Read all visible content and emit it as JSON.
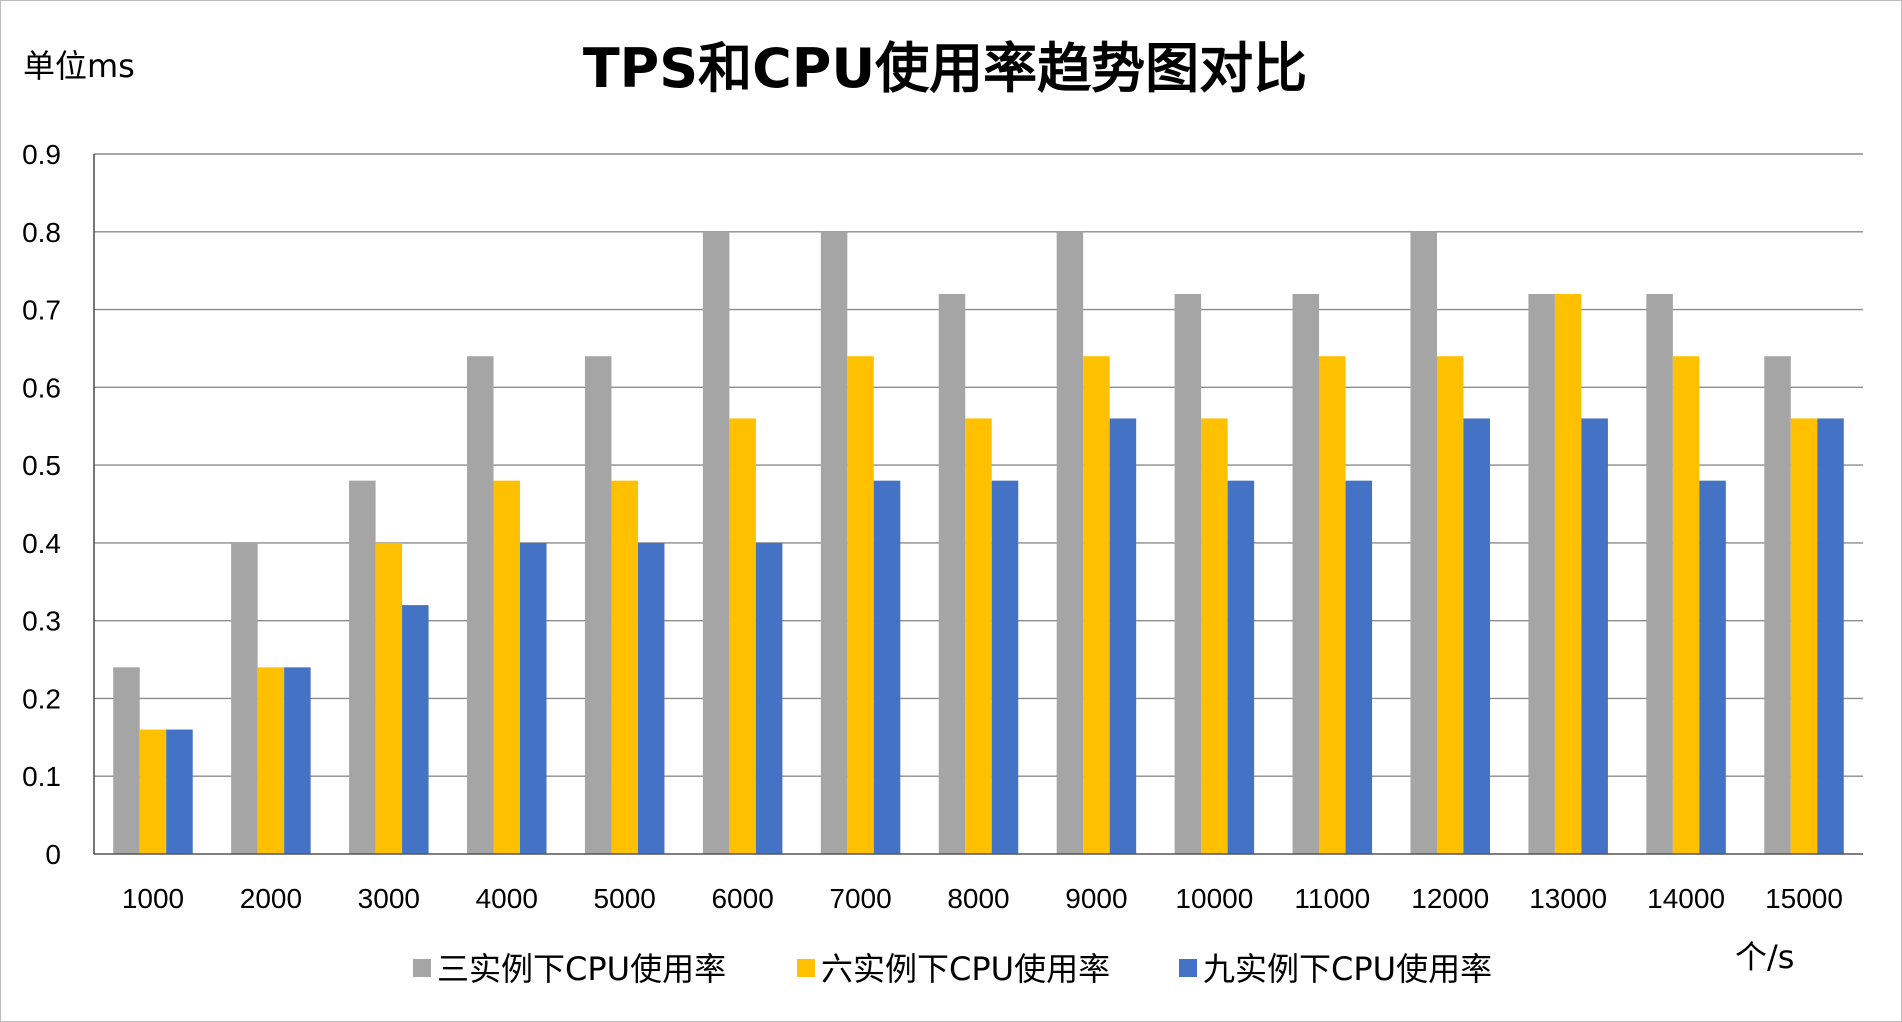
{
  "chart_data": {
    "type": "bar",
    "title": "TPS和CPU使用率趋势图对比",
    "y_unit_label": "单位ms",
    "x_unit_label": "个/s",
    "categories": [
      "1000",
      "2000",
      "3000",
      "4000",
      "5000",
      "6000",
      "7000",
      "8000",
      "9000",
      "10000",
      "11000",
      "12000",
      "13000",
      "14000",
      "15000"
    ],
    "y_ticks": [
      "0",
      "0.1",
      "0.2",
      "0.3",
      "0.4",
      "0.5",
      "0.6",
      "0.7",
      "0.8",
      "0.9"
    ],
    "ylim": [
      0,
      0.9
    ],
    "grid": true,
    "legend_position": "bottom",
    "series": [
      {
        "name": "三实例下CPU使用率",
        "color": "#a5a5a5",
        "values": [
          0.24,
          0.4,
          0.48,
          0.64,
          0.64,
          0.8,
          0.8,
          0.72,
          0.8,
          0.72,
          0.72,
          0.8,
          0.72,
          0.72,
          0.64
        ]
      },
      {
        "name": "六实例下CPU使用率",
        "color": "#ffc000",
        "values": [
          0.16,
          0.24,
          0.4,
          0.48,
          0.48,
          0.56,
          0.64,
          0.56,
          0.64,
          0.56,
          0.64,
          0.64,
          0.72,
          0.64,
          0.56
        ]
      },
      {
        "name": "九实例下CPU使用率",
        "color": "#4472c4",
        "values": [
          0.16,
          0.24,
          0.32,
          0.4,
          0.4,
          0.4,
          0.48,
          0.48,
          0.56,
          0.48,
          0.48,
          0.56,
          0.56,
          0.48,
          0.56
        ]
      }
    ]
  }
}
